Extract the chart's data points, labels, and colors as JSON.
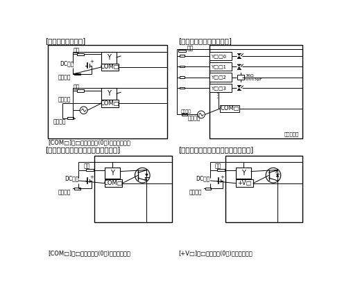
{
  "background_color": "#ffffff",
  "figsize": [
    4.93,
    4.29
  ],
  "dpi": 100,
  "title1": "[リレー出力タイプ]",
  "title2": "[トライアック出力タイプ]",
  "title3": "[トランジスタ出力タイプ（シンク）]",
  "title4": "[トランジスタ出力タイプ（ソース）]",
  "caption1": "[COM□]の□には、番号(0～)が入ります。",
  "caption2": "[COM□]の□には、番号(0～)が入ります。",
  "caption3": "[+V□]の□には番号(0～)が入ります。",
  "label_fuka": "負荷",
  "label_dc": "DC電源",
  "label_fuse": "ヒューズ",
  "label_gaibu": "外部電源",
  "label_triac_footer": "シーケンサ",
  "triac_y_labels": [
    "Y□□0",
    "Y□□1",
    "Y□□2",
    "Y□□3"
  ],
  "rc_line1": "36Ω",
  "rc_line2": "0.015μF"
}
